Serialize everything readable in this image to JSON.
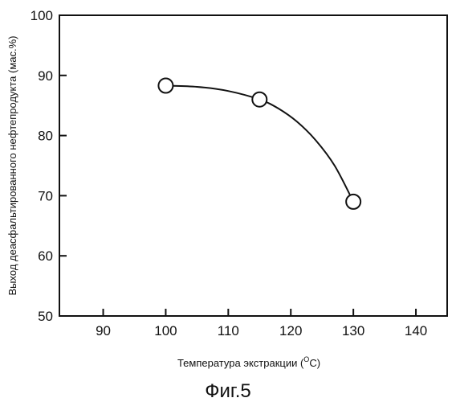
{
  "chart_data": {
    "type": "scatter",
    "xlabel_text": "Температура экстракции (",
    "xlabel_unit_sup": "O",
    "xlabel_unit_end": "C)",
    "ylabel": "Выход деасфальтированного нефтепродукта (мас.%)",
    "caption": "Фиг.5",
    "xlim": [
      83,
      145
    ],
    "ylim": [
      50,
      100
    ],
    "x_ticks": [
      90,
      100,
      110,
      120,
      130,
      140
    ],
    "y_ticks": [
      50,
      60,
      70,
      80,
      90,
      100
    ],
    "x_tick_labels": [
      "90",
      "100",
      "110",
      "120",
      "130",
      "140"
    ],
    "y_tick_labels": [
      "50",
      "60",
      "70",
      "80",
      "90",
      "100"
    ],
    "series": [
      {
        "points": [
          {
            "x": 100,
            "y": 88.3
          },
          {
            "x": 115,
            "y": 86.0
          },
          {
            "x": 130,
            "y": 69.0
          }
        ],
        "marker": "open-circle",
        "color": "#111111"
      }
    ],
    "curve": [
      {
        "x": 100,
        "y": 88.3
      },
      {
        "x": 105,
        "y": 88.1
      },
      {
        "x": 110,
        "y": 87.4
      },
      {
        "x": 115,
        "y": 86.0
      },
      {
        "x": 118,
        "y": 84.5
      },
      {
        "x": 121,
        "y": 82.3
      },
      {
        "x": 124,
        "y": 79.2
      },
      {
        "x": 127,
        "y": 75.0
      },
      {
        "x": 130,
        "y": 69.0
      }
    ],
    "grid": false
  }
}
